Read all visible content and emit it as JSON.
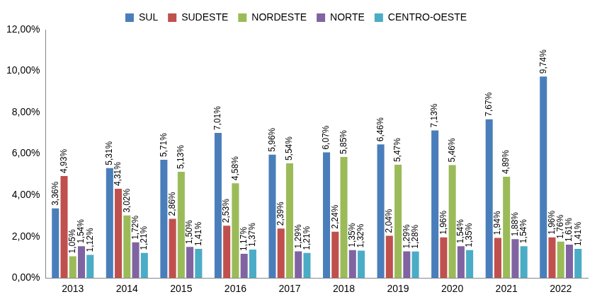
{
  "chart_data": {
    "type": "bar",
    "categories": [
      "2013",
      "2014",
      "2015",
      "2016",
      "2017",
      "2018",
      "2019",
      "2020",
      "2021",
      "2022"
    ],
    "series": [
      {
        "name": "SUL",
        "color": "#4a7ebb",
        "values": [
          3.36,
          5.31,
          5.71,
          7.01,
          5.96,
          6.07,
          6.46,
          7.13,
          7.67,
          9.74
        ],
        "value_labels": [
          "3,36%",
          "5,31%",
          "5,71%",
          "7,01%",
          "5,96%",
          "6,07%",
          "6,46%",
          "7,13%",
          "7,67%",
          "9,74%"
        ]
      },
      {
        "name": "SUDESTE",
        "color": "#c0504d",
        "values": [
          4.93,
          4.31,
          2.86,
          2.53,
          2.39,
          2.24,
          2.04,
          1.96,
          1.94,
          1.96
        ],
        "value_labels": [
          "4,93%",
          "4,31%",
          "2,86%",
          "2,53%",
          "2,39%",
          "2,24%",
          "2,04%",
          "1,96%",
          "1,94%",
          "1,96%"
        ]
      },
      {
        "name": "NORDESTE",
        "color": "#9bbb59",
        "values": [
          1.05,
          3.02,
          5.13,
          4.58,
          5.54,
          5.85,
          5.47,
          5.46,
          4.89,
          1.76
        ],
        "value_labels": [
          "1,05%",
          "3,02%",
          "5,13%",
          "4,58%",
          "5,54%",
          "5,85%",
          "5,47%",
          "5,46%",
          "4,89%",
          "1,76%"
        ]
      },
      {
        "name": "NORTE",
        "color": "#8064a2",
        "values": [
          1.54,
          1.72,
          1.5,
          1.17,
          1.29,
          1.35,
          1.29,
          1.54,
          1.88,
          1.61
        ],
        "value_labels": [
          "1,54%",
          "1,72%",
          "1,50%",
          "1,17%",
          "1,29%",
          "1,35%",
          "1,29%",
          "1,54%",
          "1,88%",
          "1,61%"
        ]
      },
      {
        "name": "CENTRO-OESTE",
        "color": "#4bacc6",
        "values": [
          1.12,
          1.21,
          1.41,
          1.37,
          1.21,
          1.32,
          1.28,
          1.35,
          1.54,
          1.41
        ],
        "value_labels": [
          "1,12%",
          "1,21%",
          "1,41%",
          "1,37%",
          "1,21%",
          "1,32%",
          "1,28%",
          "1,35%",
          "1,54%",
          "1,41%"
        ]
      }
    ],
    "ylim": [
      0,
      12
    ],
    "yticks": [
      {
        "value": 0,
        "label": "0,00%"
      },
      {
        "value": 2,
        "label": "2,00%"
      },
      {
        "value": 4,
        "label": "4,00%"
      },
      {
        "value": 6,
        "label": "6,00%"
      },
      {
        "value": 8,
        "label": "8,00%"
      },
      {
        "value": 10,
        "label": "10,00%"
      },
      {
        "value": 12,
        "label": "12,00%"
      }
    ],
    "grid": false,
    "legend": "top",
    "data_labels": true
  }
}
